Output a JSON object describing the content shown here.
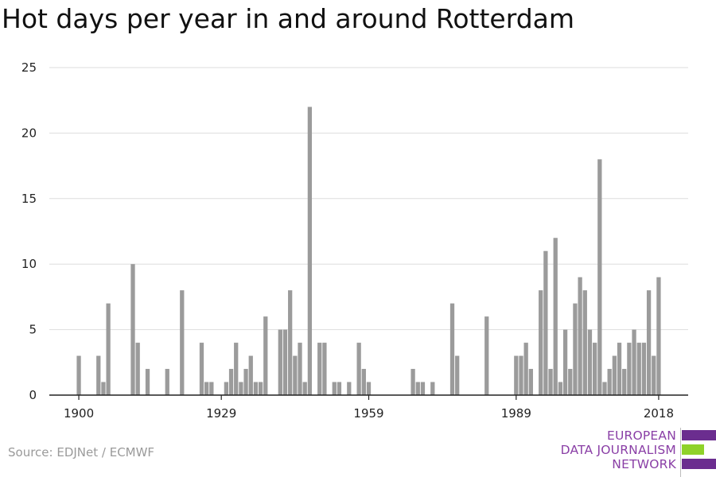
{
  "title": "Hot days per year in and around Rotterdam",
  "source": "Source: EDJNet / ECMWF",
  "logo": {
    "line1": "EUROPEAN",
    "line2": "DATA JOURNALISM",
    "line3": "NETWORK",
    "purple": "#6b2d8f",
    "green": "#8fd22a",
    "text_color": "#8a3fa6"
  },
  "colors": {
    "bar": "#9b9b9b",
    "grid": "#dddddd",
    "axis": "#222222"
  },
  "chart_data": {
    "type": "bar",
    "title": "Hot days per year in and around Rotterdam",
    "xlabel": "",
    "ylabel": "",
    "x_ticks": [
      1900,
      1929,
      1959,
      1989,
      2018
    ],
    "y_ticks": [
      0,
      5,
      10,
      15,
      20,
      25
    ],
    "xlim": [
      1894,
      2024
    ],
    "ylim": [
      0,
      25
    ],
    "grid": true,
    "series": [
      {
        "x": [
          1900,
          1904,
          1905,
          1906,
          1911,
          1912,
          1914,
          1918,
          1921,
          1925,
          1926,
          1927,
          1930,
          1931,
          1932,
          1933,
          1934,
          1935,
          1936,
          1937,
          1938,
          1941,
          1942,
          1943,
          1944,
          1945,
          1946,
          1947,
          1949,
          1950,
          1952,
          1953,
          1955,
          1957,
          1958,
          1959,
          1968,
          1969,
          1970,
          1972,
          1976,
          1977,
          1983,
          1989,
          1990,
          1991,
          1992,
          1994,
          1995,
          1996,
          1997,
          1998,
          1999,
          2000,
          2001,
          2002,
          2003,
          2004,
          2005,
          2006,
          2007,
          2008,
          2009,
          2010,
          2011,
          2012,
          2013,
          2014,
          2015,
          2016,
          2017,
          2018
        ],
        "values": [
          3,
          3,
          1,
          7,
          10,
          4,
          2,
          2,
          8,
          4,
          1,
          1,
          1,
          2,
          4,
          1,
          2,
          3,
          1,
          1,
          6,
          5,
          5,
          8,
          3,
          4,
          1,
          22,
          4,
          4,
          1,
          1,
          1,
          4,
          2,
          1,
          2,
          1,
          1,
          1,
          7,
          3,
          6,
          3,
          3,
          4,
          2,
          8,
          11,
          2,
          12,
          1,
          5,
          2,
          7,
          9,
          8,
          5,
          4,
          18,
          1,
          2,
          3,
          4,
          2,
          4,
          5,
          4,
          4,
          8,
          3,
          9
        ]
      }
    ]
  }
}
